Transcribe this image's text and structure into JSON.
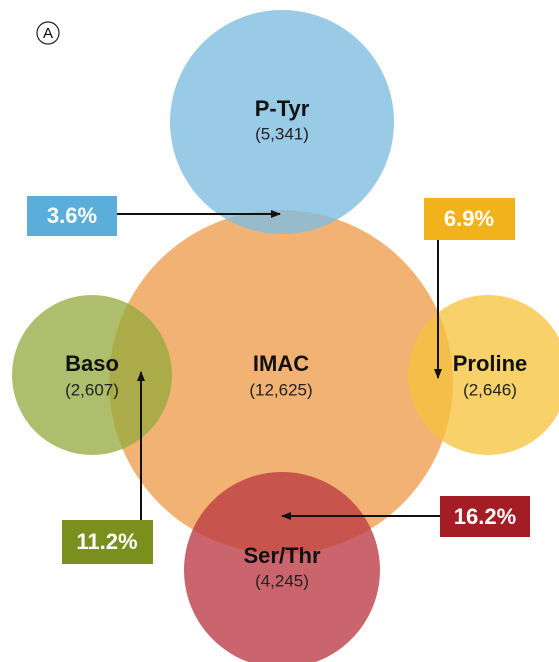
{
  "panel_label": "A",
  "nodes": [
    {
      "label": "P-Tyr",
      "count": "(5,341)"
    },
    {
      "label": "IMAC",
      "count": "(12,625)"
    },
    {
      "label": "Baso",
      "count": "(2,607)"
    },
    {
      "label": "Proline",
      "count": "(2,646)"
    },
    {
      "label": "Ser/Thr",
      "count": "(4,245)"
    }
  ],
  "callouts": [
    {
      "label": "3.6%"
    },
    {
      "label": "6.9%"
    },
    {
      "label": "11.2%"
    },
    {
      "label": "16.2%"
    }
  ]
}
